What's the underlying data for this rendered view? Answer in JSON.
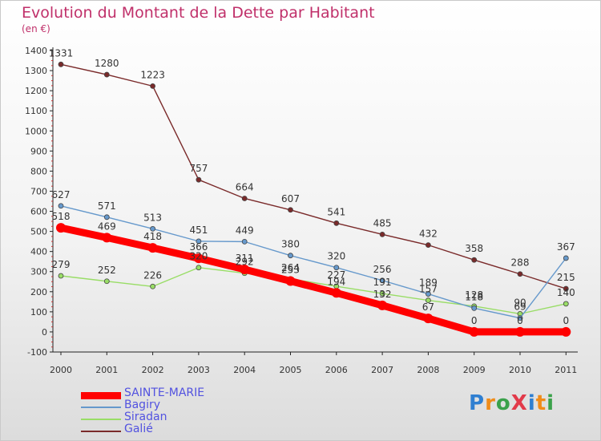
{
  "title": "Evolution du Montant de la Dette par Habitant",
  "unit": "(en €)",
  "logo": {
    "text": "ProXiti",
    "colors": [
      "#2f7fd1",
      "#f08c19",
      "#3aa14a",
      "#e23a4a",
      "#2f7fd1",
      "#f08c19",
      "#3aa14a"
    ]
  },
  "chart_data": {
    "type": "line",
    "x": [
      "2000",
      "2001",
      "2002",
      "2003",
      "2004",
      "2005",
      "2006",
      "2007",
      "2008",
      "2009",
      "2010",
      "2011"
    ],
    "ylim": [
      -100,
      1400
    ],
    "yticks": [
      "-100",
      "0",
      "100",
      "200",
      "300",
      "400",
      "500",
      "600",
      "700",
      "800",
      "900",
      "1000",
      "1100",
      "1200",
      "1300",
      "1400"
    ],
    "grid": false,
    "legend_position": "bottom-left",
    "series": [
      {
        "name": "SAINTE-MARIE",
        "color": "#ff0000",
        "values": [
          518,
          469,
          418,
          366,
          311,
          253,
          194,
          132,
          67,
          0,
          0,
          0
        ],
        "labels": [
          "518",
          "469",
          "418",
          "366",
          "311",
          "253",
          "194",
          "132",
          "67",
          "0",
          "0",
          "0"
        ]
      },
      {
        "name": "Bagiry",
        "color": "#6699cc",
        "values": [
          627,
          571,
          513,
          451,
          449,
          380,
          320,
          256,
          189,
          118,
          69,
          367
        ],
        "labels": [
          "627",
          "571",
          "513",
          "451",
          "449",
          "380",
          "320",
          "256",
          "189",
          "118",
          "69",
          "367"
        ]
      },
      {
        "name": "Siradan",
        "color": "#99dd66",
        "values": [
          279,
          252,
          226,
          320,
          292,
          264,
          227,
          191,
          157,
          128,
          90,
          140
        ],
        "labels": [
          "279",
          "252",
          "226",
          "320",
          "292",
          "264",
          "227",
          "191",
          "157",
          "128",
          "90",
          "140"
        ]
      },
      {
        "name": "Galié",
        "color": "#7a2a2a",
        "values": [
          1331,
          1280,
          1223,
          757,
          664,
          607,
          541,
          485,
          432,
          358,
          288,
          215
        ],
        "labels": [
          "1331",
          "1280",
          "1223",
          "757",
          "664",
          "607",
          "541",
          "485",
          "432",
          "358",
          "288",
          "215"
        ]
      }
    ]
  }
}
